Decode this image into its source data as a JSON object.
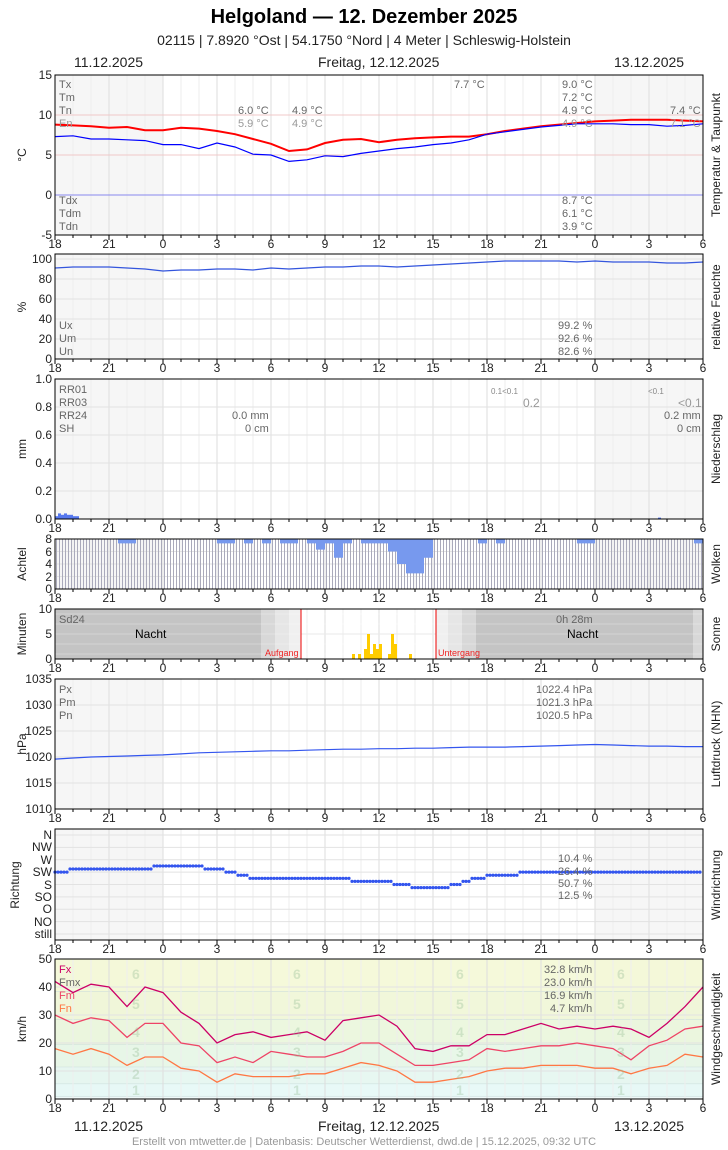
{
  "header": {
    "title": "Helgoland  —  12. Dezember 2025",
    "subtitle": "02115  |  7.8920 °Ost  |  54.1750 °Nord  |  4 Meter  |  Schleswig-Holstein",
    "date_left": "11.12.2025",
    "date_center": "Freitag, 12.12.2025",
    "date_right": "13.12.2025"
  },
  "footer": "Erstellt von mtwetter.de | Datenbasis: Deutscher Wetterdienst, dwd.de | 15.12.2025, 09:32 UTC",
  "hour_ticks": [
    "18",
    "21",
    "0",
    "3",
    "6",
    "9",
    "12",
    "15",
    "18",
    "21",
    "0",
    "3",
    "6"
  ],
  "colors": {
    "temp": "#ff0000",
    "dew": "#0000ff",
    "humidity": "#3355dd",
    "precip": "#5577ee",
    "clear": "#7799ee",
    "sun": "#ffcc00",
    "pressure": "#3355ee",
    "direction": "#3355ee",
    "fx": "#cc0066",
    "fm": "#ee4466",
    "fn": "#ff7744",
    "sunline": "#ee0000"
  },
  "chart_data": [
    {
      "type": "line",
      "panel": "temperature",
      "ylabel": "°C",
      "right_label": "Temperatur & Taupunkt",
      "ylim": [
        -5,
        15
      ],
      "yticks": [
        "15",
        "10",
        "5",
        "0",
        "-5"
      ],
      "x_hours_from": "11.12.2025 18:00",
      "x_step_hours": 1,
      "series": [
        {
          "name": "T",
          "values": [
            8.8,
            8.7,
            8.6,
            8.4,
            8.5,
            8.1,
            8.1,
            8.4,
            8.3,
            8.0,
            7.6,
            7.0,
            6.4,
            5.5,
            5.7,
            6.5,
            6.9,
            7.0,
            6.6,
            6.9,
            7.1,
            7.2,
            7.3,
            7.3,
            7.6,
            8.0,
            8.3,
            8.6,
            8.8,
            9.0,
            9.2,
            9.3,
            9.4,
            9.4,
            9.4,
            9.3,
            9.2
          ]
        },
        {
          "name": "Td",
          "values": [
            7.3,
            7.4,
            7.0,
            7.0,
            6.9,
            6.8,
            6.3,
            6.3,
            5.8,
            6.5,
            6.0,
            5.1,
            5.0,
            4.2,
            4.4,
            4.9,
            4.8,
            5.2,
            5.5,
            5.8,
            6.0,
            6.3,
            6.5,
            6.9,
            7.6,
            7.9,
            8.2,
            8.5,
            8.7,
            8.9,
            8.9,
            8.9,
            8.8,
            8.8,
            8.6,
            8.7,
            8.9
          ]
        }
      ],
      "legend_top": [
        "Tx",
        "Tm",
        "Tn",
        "En"
      ],
      "legend_bottom": [
        "Tdx",
        "Tdm",
        "Tdn"
      ],
      "stats": {
        "d11_tn": "6.0 °C",
        "d11_en": "5.9 °C",
        "d12_tn_early": "4.9 °C",
        "d12_en_early": "4.9 °C",
        "d12_max_label": "7.7 °C",
        "d12_tx": "9.0 °C",
        "d12_tm": "7.2 °C",
        "d12_tn": "4.9 °C",
        "d12_en": "4.9 °C",
        "d13_tn": "7.4 °C",
        "d13_en": "7.1 °C",
        "d12_tdx": "8.7 °C",
        "d12_tdm": "6.1 °C",
        "d12_tdn": "3.9 °C"
      }
    },
    {
      "type": "line",
      "panel": "humidity",
      "ylabel": "%",
      "right_label": "relative Feuchte",
      "ylim": [
        0,
        100
      ],
      "yticks": [
        "100",
        "80",
        "60",
        "40",
        "20",
        "0"
      ],
      "series": [
        {
          "name": "U",
          "values": [
            91,
            92,
            92,
            92,
            91,
            90,
            88,
            89,
            89,
            90,
            90,
            89,
            91,
            90,
            91,
            92,
            92,
            93,
            93,
            92,
            93,
            94,
            95,
            96,
            97,
            98,
            98,
            98,
            98,
            97,
            98,
            97,
            97,
            97,
            96,
            96,
            97
          ]
        }
      ],
      "legend": [
        "Ux",
        "Um",
        "Un"
      ],
      "stats": [
        "99.2 %",
        "92.6 %",
        "82.6 %"
      ]
    },
    {
      "type": "bar",
      "panel": "precipitation",
      "ylabel": "mm",
      "right_label": "Niederschlag",
      "ylim": [
        0,
        1
      ],
      "yticks": [
        "1.0",
        "0.8",
        "0.6",
        "0.4",
        "0.2",
        "0.0"
      ],
      "bars": [
        {
          "hour": "18:00",
          "value": 0.02
        },
        {
          "hour": "18:10",
          "value": 0.04
        },
        {
          "hour": "18:20",
          "value": 0.03
        },
        {
          "hour": "18:30",
          "value": 0.04
        },
        {
          "hour": "18:40",
          "value": 0.03
        },
        {
          "hour": "18:50",
          "value": 0.03
        },
        {
          "hour": "19:00",
          "value": 0.02
        },
        {
          "hour": "19:10",
          "value": 0.02
        },
        {
          "hour": "03:30",
          "value": 0.01
        }
      ],
      "legend": [
        "RR01",
        "RR03",
        "RR24",
        "SH"
      ],
      "stats": {
        "d12_rr24": "0.0 mm",
        "d12_sh": "0 cm",
        "rr01_a": "0.1<0.1",
        "rr03_a": "0.2",
        "rr01_b": "<0.1",
        "rr03_b": "<0.1",
        "d13_rr24": "0.2 mm",
        "d13_sh": "0 cm"
      }
    },
    {
      "type": "bar",
      "panel": "clouds",
      "ylabel": "Achtel",
      "right_label": "Wolken",
      "ylim": [
        0,
        8
      ],
      "yticks": [
        "8",
        "6",
        "4",
        "2",
        "0"
      ],
      "cloud_octas_half_hourly": [
        8,
        8,
        8,
        8,
        8,
        8,
        8,
        7.3,
        7.3,
        8,
        8,
        8,
        8,
        8,
        8,
        8,
        8,
        8,
        7.3,
        7.3,
        8,
        7.3,
        8,
        7.3,
        8,
        7.3,
        7.3,
        8,
        7.3,
        6.3,
        7.3,
        5,
        7.3,
        8,
        7.3,
        7.3,
        7.3,
        6,
        4,
        2.5,
        2.5,
        5,
        8,
        8,
        8,
        8,
        8,
        7.3,
        8,
        7.3,
        8,
        8,
        8,
        8,
        8,
        8,
        8,
        8,
        7.3,
        7.3,
        8,
        8,
        8,
        8,
        8,
        8,
        8,
        8,
        8,
        8,
        8,
        7.3
      ]
    },
    {
      "type": "bar",
      "panel": "sunshine",
      "ylabel": "Minuten",
      "right_label": "Sonne",
      "ylim": [
        0,
        10
      ],
      "yticks": [
        "10",
        "5",
        "0"
      ],
      "sun_minutes": [
        {
          "time": "10:30",
          "value": 1
        },
        {
          "time": "10:50",
          "value": 1
        },
        {
          "time": "11:10",
          "value": 2
        },
        {
          "time": "11:20",
          "value": 5
        },
        {
          "time": "11:30",
          "value": 1
        },
        {
          "time": "11:40",
          "value": 3
        },
        {
          "time": "11:50",
          "value": 2
        },
        {
          "time": "12:00",
          "value": 3
        },
        {
          "time": "12:30",
          "value": 1
        },
        {
          "time": "12:40",
          "value": 5
        },
        {
          "time": "12:50",
          "value": 3
        },
        {
          "time": "13:40",
          "value": 1
        }
      ],
      "sunrise": "07:40",
      "sunset": "15:10",
      "labels": {
        "sd24": "Sd24",
        "night": "Nacht",
        "sunrise": "Aufgang",
        "sunset": "Untergang",
        "total": "0h 28m"
      }
    },
    {
      "type": "line",
      "panel": "pressure",
      "ylabel": "hPa",
      "right_label": "Luftdruck (NHN)",
      "ylim": [
        1010,
        1035
      ],
      "yticks": [
        "1035",
        "1030",
        "1025",
        "1020",
        "1015",
        "1010"
      ],
      "series": [
        {
          "name": "P",
          "values": [
            1019.6,
            1019.8,
            1020,
            1020.1,
            1020.2,
            1020.3,
            1020.4,
            1020.6,
            1020.8,
            1020.9,
            1021,
            1021.1,
            1021.2,
            1021.2,
            1021.3,
            1021.4,
            1021.5,
            1021.5,
            1021.6,
            1021.6,
            1021.7,
            1021.7,
            1021.8,
            1021.9,
            1021.9,
            1021.9,
            1022,
            1022.1,
            1022.2,
            1022.3,
            1022.4,
            1022.3,
            1022.2,
            1022.1,
            1022.1,
            1022,
            1022
          ]
        }
      ],
      "legend": [
        "Px",
        "Pm",
        "Pn"
      ],
      "stats": [
        "1022.4 hPa",
        "1021.3 hPa",
        "1020.5 hPa"
      ]
    },
    {
      "type": "scatter",
      "panel": "wind_direction",
      "ylabel": "Richtung",
      "right_label": "Windrichtung",
      "yticks": [
        "N",
        "NW",
        "W",
        "SW",
        "S",
        "SO",
        "O",
        "NO",
        "still"
      ],
      "series": [
        {
          "name": "direction_deg",
          "values": [
            225,
            232,
            232,
            232,
            238,
            240,
            245,
            245,
            245,
            235,
            222,
            205,
            200,
            200,
            202,
            200,
            198,
            195,
            188,
            185,
            172,
            168,
            175,
            195,
            210,
            213,
            222,
            225,
            230,
            225,
            225,
            225,
            225,
            225,
            228,
            228,
            228
          ]
        }
      ],
      "stats": [
        "10.4 %",
        "26.4 %",
        "50.7 %",
        "12.5 %"
      ]
    },
    {
      "type": "line",
      "panel": "wind_speed",
      "ylabel": "km/h",
      "right_label": "Windgeschwindigkeit",
      "ylim": [
        0,
        50
      ],
      "yticks": [
        "50",
        "40",
        "30",
        "20",
        "10",
        "0"
      ],
      "beaufort": [
        "6",
        "5",
        "4",
        "3",
        "2",
        "1"
      ],
      "series": [
        {
          "name": "Fx",
          "values": [
            42,
            38,
            41,
            40,
            33,
            40,
            38,
            31,
            27,
            20,
            23,
            24,
            22,
            23,
            24,
            21,
            28,
            29,
            30,
            26,
            18,
            17,
            19,
            19,
            23,
            23,
            25,
            27,
            25,
            26,
            25,
            26,
            25,
            22,
            27,
            33,
            40
          ]
        },
        {
          "name": "Fmx",
          "values": [
            30,
            27,
            29,
            28,
            22,
            27,
            27,
            20,
            19,
            13,
            15,
            13,
            17,
            16,
            15,
            15,
            17,
            20,
            20,
            16,
            12,
            12,
            13,
            14,
            18,
            17,
            18,
            19,
            19,
            20,
            19,
            18,
            14,
            19,
            21,
            25,
            26
          ]
        },
        {
          "name": "Fn",
          "values": [
            18,
            16,
            18,
            16,
            12,
            15,
            15,
            11,
            10,
            6,
            9,
            8,
            8,
            8,
            9,
            9,
            11,
            13,
            12,
            10,
            6,
            6,
            7,
            8,
            10,
            11,
            11,
            12,
            12,
            12,
            11,
            11,
            9,
            11,
            12,
            16,
            15
          ]
        }
      ],
      "legend": [
        "Fx",
        "Fmx",
        "Fm",
        "Fn"
      ],
      "stats": [
        "32.8 km/h",
        "23.0 km/h",
        "16.9 km/h",
        "4.7 km/h"
      ]
    }
  ]
}
